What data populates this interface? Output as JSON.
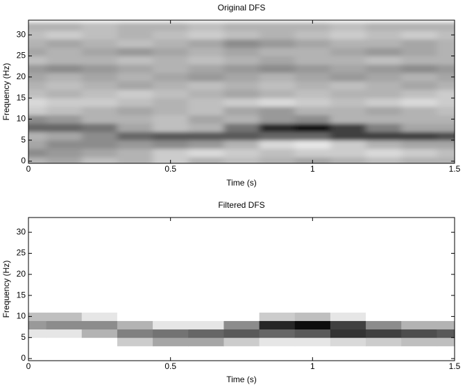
{
  "chart_data": [
    {
      "type": "heatmap",
      "title": "Original DFS",
      "x_label": "Time (s)",
      "y_label": "Frequency (Hz)",
      "x": [
        0,
        0.125,
        0.25,
        0.375,
        0.5,
        0.625,
        0.75,
        0.875,
        1,
        1.125,
        1.25,
        1.375,
        1.5
      ],
      "y": [
        0,
        2,
        4,
        6,
        8,
        10,
        12,
        14,
        16,
        18,
        20,
        22,
        24,
        26,
        28,
        30,
        32
      ],
      "values": [
        [
          0.3,
          0.35,
          0.25,
          0.3,
          0.2,
          0.3,
          0.25,
          0.3,
          0.35,
          0.3,
          0.25,
          0.3,
          0.3
        ],
        [
          0.45,
          0.4,
          0.35,
          0.3,
          0.2,
          0.15,
          0.2,
          0.25,
          0.2,
          0.2,
          0.15,
          0.2,
          0.25
        ],
        [
          0.35,
          0.45,
          0.45,
          0.4,
          0.45,
          0.4,
          0.3,
          0.15,
          0.1,
          0.2,
          0.3,
          0.35,
          0.35
        ],
        [
          0.3,
          0.35,
          0.45,
          0.6,
          0.65,
          0.65,
          0.65,
          0.6,
          0.6,
          0.75,
          0.75,
          0.75,
          0.7
        ],
        [
          0.6,
          0.6,
          0.55,
          0.35,
          0.25,
          0.3,
          0.55,
          0.85,
          0.95,
          0.75,
          0.5,
          0.35,
          0.35
        ],
        [
          0.45,
          0.4,
          0.3,
          0.3,
          0.25,
          0.35,
          0.3,
          0.4,
          0.45,
          0.3,
          0.3,
          0.3,
          0.3
        ],
        [
          0.2,
          0.25,
          0.3,
          0.35,
          0.3,
          0.25,
          0.35,
          0.4,
          0.3,
          0.3,
          0.35,
          0.3,
          0.25
        ],
        [
          0.15,
          0.2,
          0.2,
          0.25,
          0.3,
          0.25,
          0.2,
          0.15,
          0.2,
          0.25,
          0.2,
          0.15,
          0.2
        ],
        [
          0.25,
          0.3,
          0.25,
          0.2,
          0.25,
          0.3,
          0.35,
          0.3,
          0.25,
          0.3,
          0.3,
          0.25,
          0.2
        ],
        [
          0.3,
          0.25,
          0.3,
          0.35,
          0.3,
          0.25,
          0.3,
          0.25,
          0.3,
          0.25,
          0.3,
          0.35,
          0.3
        ],
        [
          0.35,
          0.3,
          0.35,
          0.3,
          0.35,
          0.4,
          0.35,
          0.3,
          0.35,
          0.4,
          0.35,
          0.3,
          0.35
        ],
        [
          0.4,
          0.45,
          0.4,
          0.35,
          0.3,
          0.35,
          0.4,
          0.45,
          0.4,
          0.35,
          0.4,
          0.45,
          0.4
        ],
        [
          0.25,
          0.3,
          0.3,
          0.25,
          0.3,
          0.25,
          0.3,
          0.35,
          0.3,
          0.3,
          0.25,
          0.3,
          0.3
        ],
        [
          0.35,
          0.3,
          0.35,
          0.4,
          0.35,
          0.3,
          0.35,
          0.3,
          0.3,
          0.35,
          0.4,
          0.35,
          0.3
        ],
        [
          0.3,
          0.35,
          0.3,
          0.25,
          0.3,
          0.35,
          0.45,
          0.4,
          0.35,
          0.3,
          0.3,
          0.35,
          0.3
        ],
        [
          0.25,
          0.2,
          0.25,
          0.3,
          0.25,
          0.2,
          0.25,
          0.3,
          0.25,
          0.2,
          0.25,
          0.2,
          0.25
        ],
        [
          0.3,
          0.3,
          0.25,
          0.3,
          0.3,
          0.25,
          0.3,
          0.3,
          0.3,
          0.25,
          0.3,
          0.3,
          0.3
        ]
      ],
      "smooth": true,
      "xlim": [
        0,
        1.5
      ],
      "ylim": [
        -0.5,
        33.5
      ],
      "xticks": [
        0,
        0.5,
        1,
        1.5
      ],
      "yticks": [
        0,
        5,
        10,
        15,
        20,
        25,
        30
      ]
    },
    {
      "type": "heatmap",
      "title": "Filtered DFS",
      "x_label": "Time (s)",
      "y_label": "Frequency (Hz)",
      "x": [
        0,
        0.125,
        0.25,
        0.375,
        0.5,
        0.625,
        0.75,
        0.875,
        1,
        1.125,
        1.25,
        1.375,
        1.5
      ],
      "y": [
        0,
        2,
        4,
        6,
        8,
        10,
        12,
        14,
        16,
        18,
        20,
        22,
        24,
        26,
        28,
        30,
        32
      ],
      "values": [
        [
          0,
          0,
          0,
          0,
          0,
          0,
          0,
          0,
          0,
          0,
          0,
          0,
          0
        ],
        [
          0,
          0,
          0,
          0,
          0,
          0,
          0,
          0,
          0,
          0,
          0,
          0,
          0
        ],
        [
          0,
          0,
          0,
          0.2,
          0.35,
          0.35,
          0.2,
          0.1,
          0.1,
          0.15,
          0.2,
          0.25,
          0.25
        ],
        [
          0.1,
          0.1,
          0.3,
          0.5,
          0.55,
          0.6,
          0.65,
          0.6,
          0.65,
          0.8,
          0.75,
          0.7,
          0.65
        ],
        [
          0.4,
          0.45,
          0.45,
          0.3,
          0.1,
          0.1,
          0.45,
          0.85,
          0.95,
          0.75,
          0.45,
          0.3,
          0.3
        ],
        [
          0.25,
          0.25,
          0.1,
          0,
          0,
          0,
          0,
          0.2,
          0.25,
          0.1,
          0,
          0,
          0
        ],
        [
          0,
          0,
          0,
          0,
          0,
          0,
          0,
          0,
          0,
          0,
          0,
          0,
          0
        ],
        [
          0,
          0,
          0,
          0,
          0,
          0,
          0,
          0,
          0,
          0,
          0,
          0,
          0
        ],
        [
          0,
          0,
          0,
          0,
          0,
          0,
          0,
          0,
          0,
          0,
          0,
          0,
          0
        ],
        [
          0,
          0,
          0,
          0,
          0,
          0,
          0,
          0,
          0,
          0,
          0,
          0,
          0
        ],
        [
          0,
          0,
          0,
          0,
          0,
          0,
          0,
          0,
          0,
          0,
          0,
          0,
          0
        ],
        [
          0,
          0,
          0,
          0,
          0,
          0,
          0,
          0,
          0,
          0,
          0,
          0,
          0
        ],
        [
          0,
          0,
          0,
          0,
          0,
          0,
          0,
          0,
          0,
          0,
          0,
          0,
          0
        ],
        [
          0,
          0,
          0,
          0,
          0,
          0,
          0,
          0,
          0,
          0,
          0,
          0,
          0
        ],
        [
          0,
          0,
          0,
          0,
          0,
          0,
          0,
          0,
          0,
          0,
          0,
          0,
          0
        ],
        [
          0,
          0,
          0,
          0,
          0,
          0,
          0,
          0,
          0,
          0,
          0,
          0,
          0
        ],
        [
          0,
          0,
          0,
          0,
          0,
          0,
          0,
          0,
          0,
          0,
          0,
          0,
          0
        ]
      ],
      "smooth": false,
      "xlim": [
        0,
        1.5
      ],
      "ylim": [
        -0.5,
        33.5
      ],
      "xticks": [
        0,
        0.5,
        1,
        1.5
      ],
      "yticks": [
        0,
        5,
        10,
        15,
        20,
        25,
        30
      ]
    }
  ]
}
